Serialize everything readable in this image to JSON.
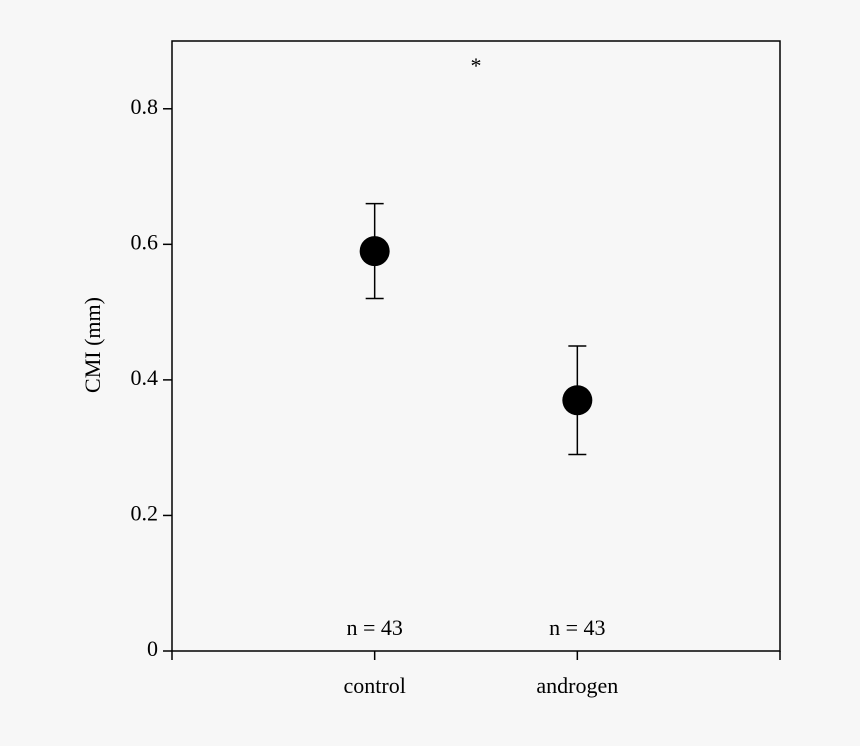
{
  "chart_data": {
    "type": "errorbar",
    "ylabel": "CMI (mm)",
    "categories": [
      "control",
      "androgen"
    ],
    "values": [
      0.59,
      0.37
    ],
    "errors": [
      0.07,
      0.08
    ],
    "color": "#000000",
    "ylim": [
      0,
      0.9
    ],
    "yticks": [
      0,
      0.2,
      0.4,
      0.6,
      0.8
    ],
    "annotations": {
      "significance": "*",
      "sample_sizes": [
        "n = 43",
        "n = 43"
      ]
    }
  }
}
